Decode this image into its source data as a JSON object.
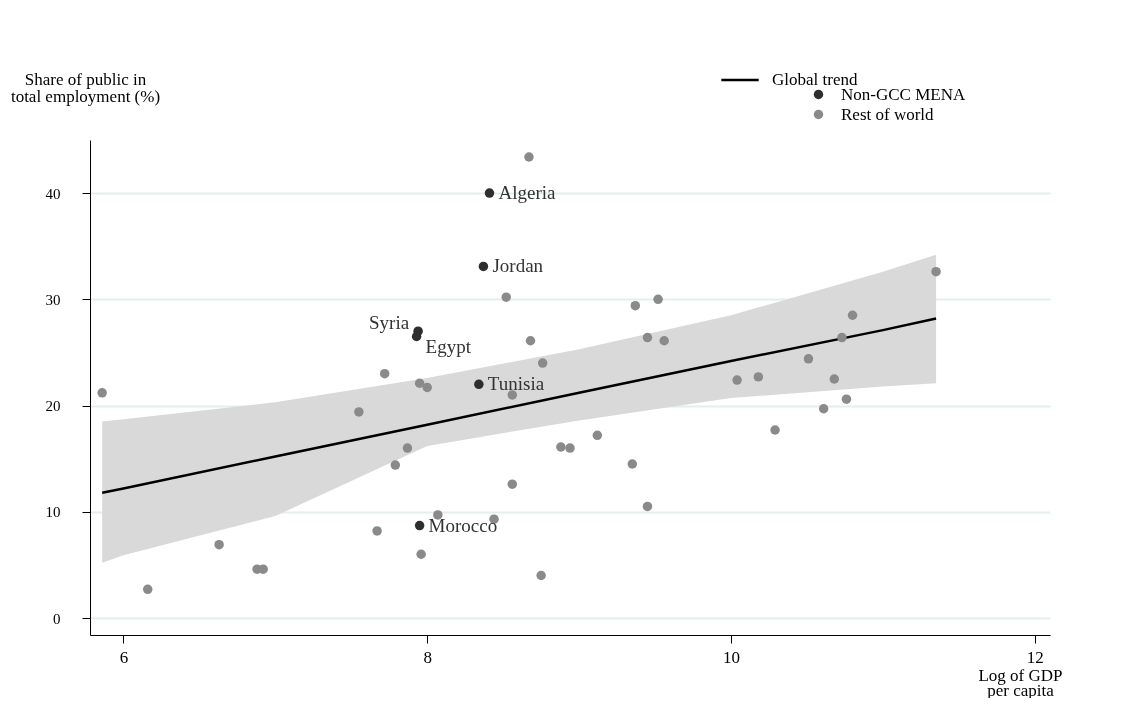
{
  "chart_data": {
    "type": "scatter",
    "xlabel": "Log of GDP per capita",
    "ylabel": "Share of public in total employment (%)",
    "xlim": [
      5.78,
      12.1
    ],
    "xticks": [
      6,
      8,
      10,
      12
    ],
    "ylim": [
      -1.6,
      45
    ],
    "yticks": [
      0,
      10,
      20,
      30,
      40
    ],
    "grid": "y",
    "legend": "top right",
    "marker": "circle",
    "series": [
      {
        "name": "Global trend",
        "type": "line",
        "marker": "none",
        "line_style": "solid",
        "color": "#000000",
        "x": [
          5.86,
          6,
          7,
          8,
          9,
          10,
          11,
          11.35
        ],
        "values": [
          11.8,
          12.2,
          15.2,
          18.2,
          21.2,
          24.2,
          27.1,
          28.2
        ],
        "lower": [
          5.2,
          5.9,
          9.6,
          16.2,
          18.6,
          20.7,
          21.8,
          22.1
        ],
        "upper": [
          18.5,
          18.7,
          20.3,
          22.6,
          25.3,
          28.5,
          32.6,
          34.2
        ]
      },
      {
        "name": "Non-GCC MENA",
        "color": "#2e2e2e",
        "x": [
          8.41,
          8.37,
          7.94,
          7.93,
          8.34,
          7.95
        ],
        "values": [
          40.0,
          33.1,
          27.0,
          26.5,
          22.0,
          8.7
        ]
      },
      {
        "name": "Rest of world",
        "color": "#8a8a8a",
        "x": [
          8.67,
          8.52,
          8.68,
          8.76,
          7.72,
          7.95,
          8.0,
          8.56,
          5.86,
          7.55,
          7.87,
          7.79,
          8.88,
          8.94,
          8.56,
          8.07,
          8.44,
          7.67,
          6.63,
          7.96,
          6.88,
          6.92,
          8.75,
          6.16,
          9.37,
          9.52,
          9.45,
          9.56,
          9.12,
          9.35,
          9.45,
          10.04,
          10.18,
          10.29,
          10.51,
          10.61,
          10.68,
          10.73,
          10.76,
          10.8,
          11.35
        ],
        "values": [
          43.4,
          30.2,
          26.1,
          24.0,
          23.0,
          22.1,
          21.7,
          21.0,
          21.2,
          19.4,
          16.0,
          14.4,
          16.1,
          16.0,
          12.6,
          9.7,
          9.3,
          8.2,
          6.9,
          6.0,
          4.6,
          4.6,
          4.0,
          2.7,
          29.4,
          30.0,
          26.4,
          26.1,
          17.2,
          14.5,
          10.5,
          22.4,
          22.7,
          17.7,
          24.4,
          19.7,
          22.5,
          26.4,
          20.6,
          28.5,
          32.6
        ]
      }
    ],
    "annotations": [
      {
        "text": "Algeria",
        "x": 8.41,
        "y": 40.0
      },
      {
        "text": "Jordan",
        "x": 8.37,
        "y": 33.1
      },
      {
        "text": "Syria",
        "x": 7.94,
        "y": 27.0
      },
      {
        "text": "Egypt",
        "x": 7.93,
        "y": 26.5
      },
      {
        "text": "Tunisia",
        "x": 8.34,
        "y": 22.0
      },
      {
        "text": "Morocco",
        "x": 7.95,
        "y": 8.7
      }
    ]
  }
}
